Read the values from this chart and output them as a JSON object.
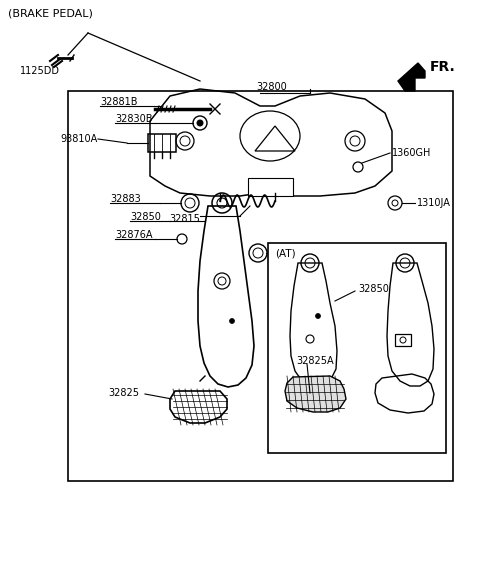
{
  "bg_color": "#ffffff",
  "line_color": "#000000",
  "fig_width": 4.8,
  "fig_height": 5.61,
  "dpi": 100,
  "labels": {
    "brake_pedal": "(BRAKE PEDAL)",
    "fr": "FR.",
    "part_32800": "32800",
    "part_1125DD": "1125DD",
    "part_32881B": "32881B",
    "part_32830B": "32830B",
    "part_93810A": "93810A",
    "part_1360GH": "1360GH",
    "part_32815": "32815",
    "part_1310JA": "1310JA",
    "part_32883_top": "32883",
    "part_32850_left": "32850",
    "part_32876A": "32876A",
    "part_32883_bot": "32883",
    "part_32825": "32825",
    "at_label": "(AT)",
    "part_32850_at": "32850",
    "part_32825A": "32825A"
  }
}
